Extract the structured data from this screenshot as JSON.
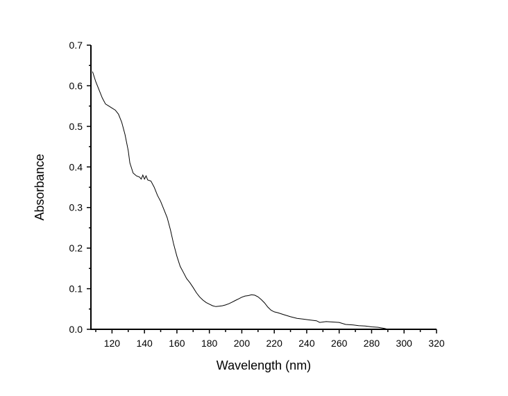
{
  "chart_data": {
    "type": "line",
    "title": "",
    "xlabel": "Wavelength (nm)",
    "ylabel": "Absorbance",
    "xlim": [
      107,
      320
    ],
    "ylim": [
      0,
      0.7
    ],
    "xticks": [
      120,
      140,
      160,
      180,
      200,
      220,
      240,
      260,
      280,
      300,
      320
    ],
    "xtick_labels": [
      "120",
      "140",
      "160",
      "180",
      "200",
      "220",
      "240",
      "260",
      "280",
      "300",
      "320"
    ],
    "yticks": [
      0,
      0.1,
      0.2,
      0.3,
      0.4,
      0.5,
      0.6,
      0.7
    ],
    "ytick_labels": [
      "0.0",
      "0.1",
      "0.2",
      "0.3",
      "0.4",
      "0.5",
      "0.6",
      "0.7"
    ],
    "grid": false,
    "line_color": "#000000",
    "series": [
      {
        "x": [
          108,
          110,
          112,
          114,
          116,
          118,
          120,
          122,
          124,
          126,
          128,
          130,
          131,
          133,
          135,
          137,
          138,
          139,
          140,
          141,
          142,
          144,
          146,
          148,
          150,
          152,
          154,
          156,
          158,
          160,
          162,
          164,
          166,
          168,
          170,
          172,
          174,
          176,
          178,
          180,
          182,
          184,
          186,
          188,
          190,
          192,
          194,
          196,
          198,
          200,
          202,
          204,
          206,
          208,
          210,
          212,
          214,
          216,
          218,
          220,
          222,
          226,
          230,
          234,
          238,
          242,
          246,
          248,
          252,
          256,
          260,
          264,
          268,
          272,
          276,
          280,
          284,
          288,
          290
        ],
        "y": [
          0.635,
          0.61,
          0.59,
          0.57,
          0.555,
          0.55,
          0.545,
          0.54,
          0.53,
          0.51,
          0.48,
          0.44,
          0.41,
          0.385,
          0.378,
          0.375,
          0.37,
          0.38,
          0.37,
          0.378,
          0.368,
          0.365,
          0.35,
          0.33,
          0.315,
          0.295,
          0.275,
          0.245,
          0.21,
          0.18,
          0.155,
          0.14,
          0.125,
          0.115,
          0.103,
          0.09,
          0.08,
          0.072,
          0.066,
          0.062,
          0.058,
          0.056,
          0.057,
          0.058,
          0.06,
          0.063,
          0.067,
          0.071,
          0.075,
          0.079,
          0.082,
          0.083,
          0.085,
          0.084,
          0.08,
          0.073,
          0.065,
          0.055,
          0.047,
          0.043,
          0.041,
          0.036,
          0.031,
          0.027,
          0.025,
          0.023,
          0.021,
          0.017,
          0.019,
          0.018,
          0.017,
          0.012,
          0.011,
          0.009,
          0.008,
          0.006,
          0.005,
          0.002,
          0.0
        ]
      }
    ]
  }
}
